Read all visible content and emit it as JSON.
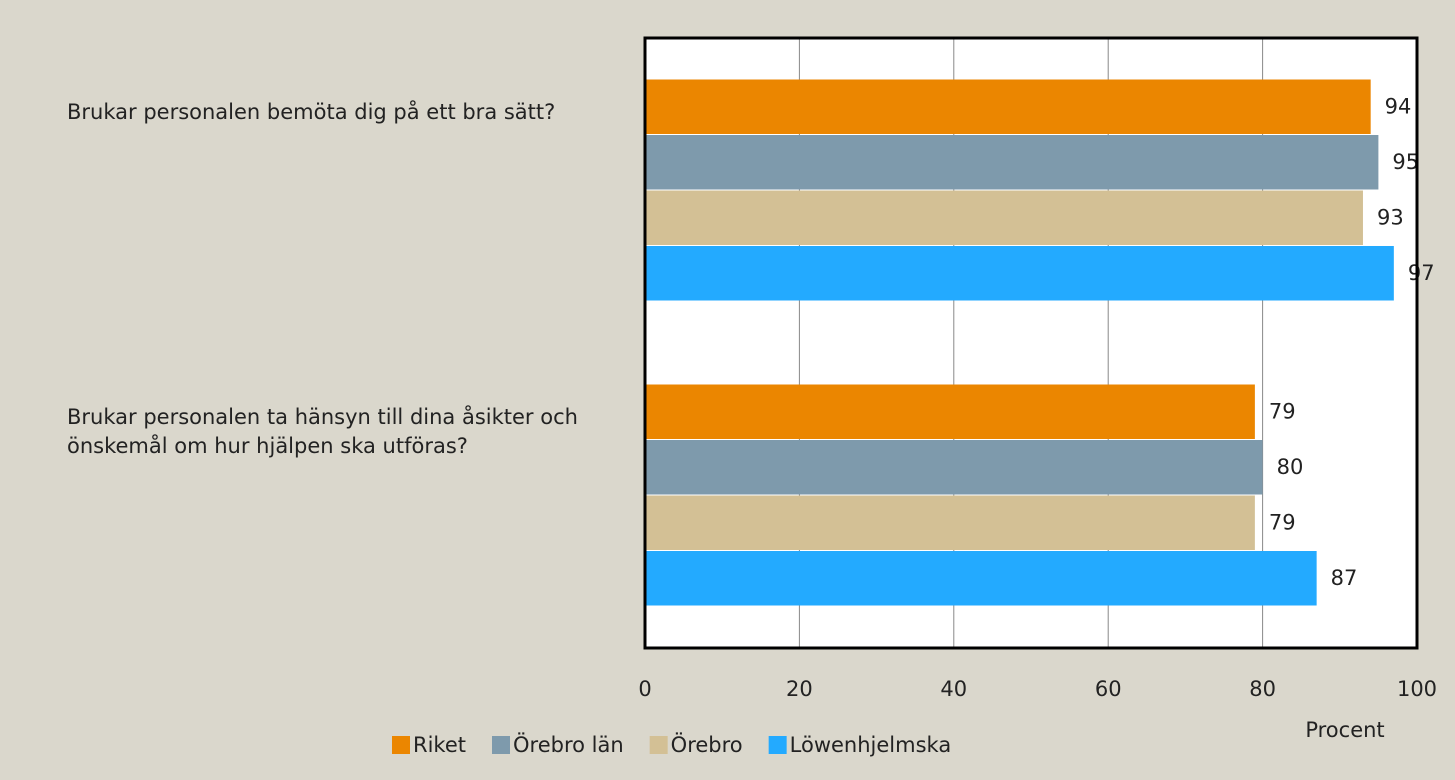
{
  "chart_data": {
    "type": "hbar",
    "categories": [
      "Brukar personalen bemöta dig på ett bra sätt?",
      "Brukar personalen ta hänsyn till dina åsikter och önskemål om hur hjälpen ska utföras?"
    ],
    "series": [
      {
        "name": "Riket",
        "color": "#eb8600",
        "values": [
          94,
          79
        ]
      },
      {
        "name": "Örebro län",
        "color": "#7e9aac",
        "values": [
          95,
          80
        ]
      },
      {
        "name": "Örebro",
        "color": "#d3c095",
        "values": [
          93,
          79
        ]
      },
      {
        "name": "Löwenhjelmska",
        "color": "#23aaff",
        "values": [
          97,
          87
        ]
      }
    ],
    "x_label": "Procent",
    "xlim": [
      0,
      100
    ],
    "xticks": [
      0,
      20,
      40,
      60,
      80,
      100
    ],
    "grid": true,
    "legend": "bottom"
  }
}
